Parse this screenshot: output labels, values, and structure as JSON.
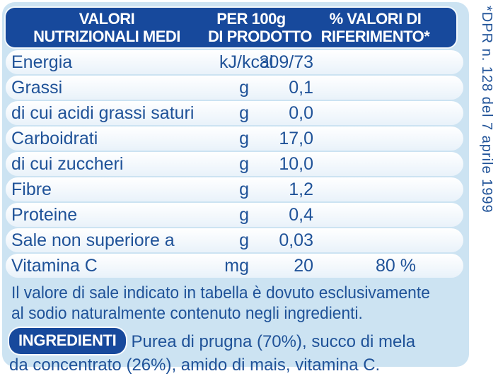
{
  "colors": {
    "panel_bg": "#cce3f2",
    "header_bg": "#17499c",
    "text_blue": "#1f5298",
    "row_bg_top": "#ffffff",
    "row_bg_bottom": "#e9f2fa"
  },
  "header": {
    "col1_line1": "VALORI",
    "col1_line2": "NUTRIZIONALI MEDI",
    "col2_line1": "PER 100g",
    "col2_line2": "DI PRODOTTO",
    "col3_line1": "% VALORI DI",
    "col3_line2": "RIFERIMENTO*"
  },
  "table": {
    "rows": [
      {
        "label": "Energia",
        "unit": "kJ/kcal",
        "value": "309/73"
      },
      {
        "label": "Grassi",
        "unit": "g",
        "value": "0,1"
      },
      {
        "label": "di cui acidi grassi saturi",
        "unit": "g",
        "value": "0,0"
      },
      {
        "label": "Carboidrati",
        "unit": "g",
        "value": "17,0"
      },
      {
        "label": "di cui zuccheri",
        "unit": "g",
        "value": "10,0"
      },
      {
        "label": "Fibre",
        "unit": "g",
        "value": "1,2"
      },
      {
        "label": "Proteine",
        "unit": "g",
        "value": "0,4"
      },
      {
        "label": "Sale non superiore a",
        "unit": "g",
        "value": "0,03"
      },
      {
        "label": "Vitamina C",
        "unit": "mg",
        "value": "20",
        "reference": "80 %"
      }
    ]
  },
  "footnote": {
    "line1": "Il valore di sale indicato in tabella è dovuto esclusivamente",
    "line2": "al sodio naturalmente contenuto negli ingredienti."
  },
  "ingredients": {
    "badge": "INGREDIENTI",
    "line1": "Purea di prugna (70%), succo di mela",
    "line2": "da concentrato (26%), amido di mais, vitamina C."
  },
  "side_note": "*DPR n. 128 del 7 aprile 1999"
}
